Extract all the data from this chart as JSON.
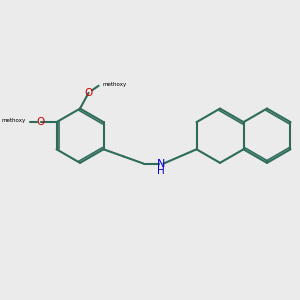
{
  "background_color": "#ebebeb",
  "bond_color": "#2d6b5a",
  "N_color": "#0000cc",
  "O_color": "#cc0000",
  "lw": 1.5,
  "fontsize_label": 7.5,
  "methoxy1": "methoxy",
  "methoxy2": "methoxy",
  "NH_label": "NH",
  "OMe_label": "O",
  "methoxy_text1": "methoxy",
  "methoxy_text2": "methoxy"
}
